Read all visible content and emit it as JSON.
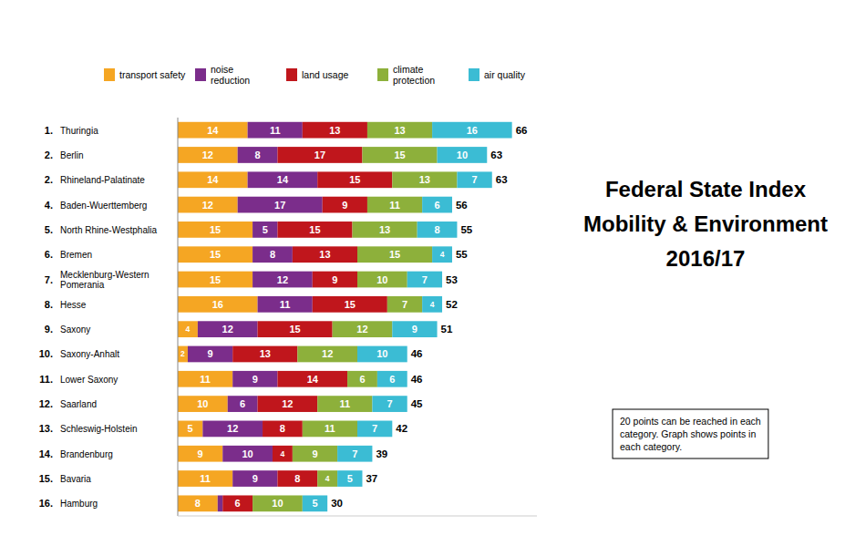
{
  "chart_data": {
    "type": "bar",
    "orientation": "horizontal",
    "stacked": true,
    "title": "Federal State Index\nMobility & Environment\n2016/17",
    "categories": [
      "Thuringia",
      "Berlin",
      "Rhineland-Palatinate",
      "Baden-Wuerttemberg",
      "North Rhine-Westphalia",
      "Bremen",
      "Mecklenburg-Western\nPomerania",
      "Hesse",
      "Saxony",
      "Saxony-Anhalt",
      "Lower Saxony",
      "Saarland",
      "Schleswig-Holstein",
      "Brandenburg",
      "Bavaria",
      "Hamburg"
    ],
    "ranks": [
      "1.",
      "2.",
      "2.",
      "4.",
      "5.",
      "6.",
      "7.",
      "8.",
      "9.",
      "10.",
      "11.",
      "12.",
      "13.",
      "14.",
      "15.",
      "16."
    ],
    "totals": [
      66,
      63,
      63,
      56,
      55,
      55,
      53,
      52,
      51,
      46,
      46,
      45,
      42,
      39,
      37,
      30
    ],
    "series": [
      {
        "name": "transport safety",
        "color": "#F5A623",
        "values": [
          14,
          12,
          14,
          12,
          15,
          15,
          15,
          16,
          4,
          2,
          11,
          10,
          5,
          9,
          11,
          8
        ]
      },
      {
        "name": "noise\nreduction",
        "color": "#7B2D8B",
        "values": [
          11,
          8,
          14,
          17,
          5,
          8,
          12,
          11,
          12,
          9,
          9,
          6,
          12,
          10,
          9,
          1
        ]
      },
      {
        "name": "land usage",
        "color": "#C0161C",
        "values": [
          13,
          17,
          15,
          9,
          15,
          13,
          9,
          15,
          15,
          13,
          14,
          12,
          8,
          4,
          8,
          6
        ]
      },
      {
        "name": "climate\nprotection",
        "color": "#8DB03B",
        "values": [
          13,
          15,
          13,
          11,
          13,
          15,
          10,
          7,
          12,
          12,
          6,
          11,
          11,
          9,
          4,
          10
        ]
      },
      {
        "name": "air quality",
        "color": "#3BBCD4",
        "values": [
          16,
          10,
          7,
          6,
          8,
          4,
          7,
          4,
          9,
          10,
          6,
          7,
          7,
          7,
          5,
          5
        ]
      }
    ],
    "annotations": [
      "20 points can be reached in each\ncategory. Graph shows points in\neach category."
    ],
    "xlim": [
      0,
      72
    ],
    "data_labels": true,
    "tick_labels": "y",
    "legend": "top",
    "grid": false
  }
}
